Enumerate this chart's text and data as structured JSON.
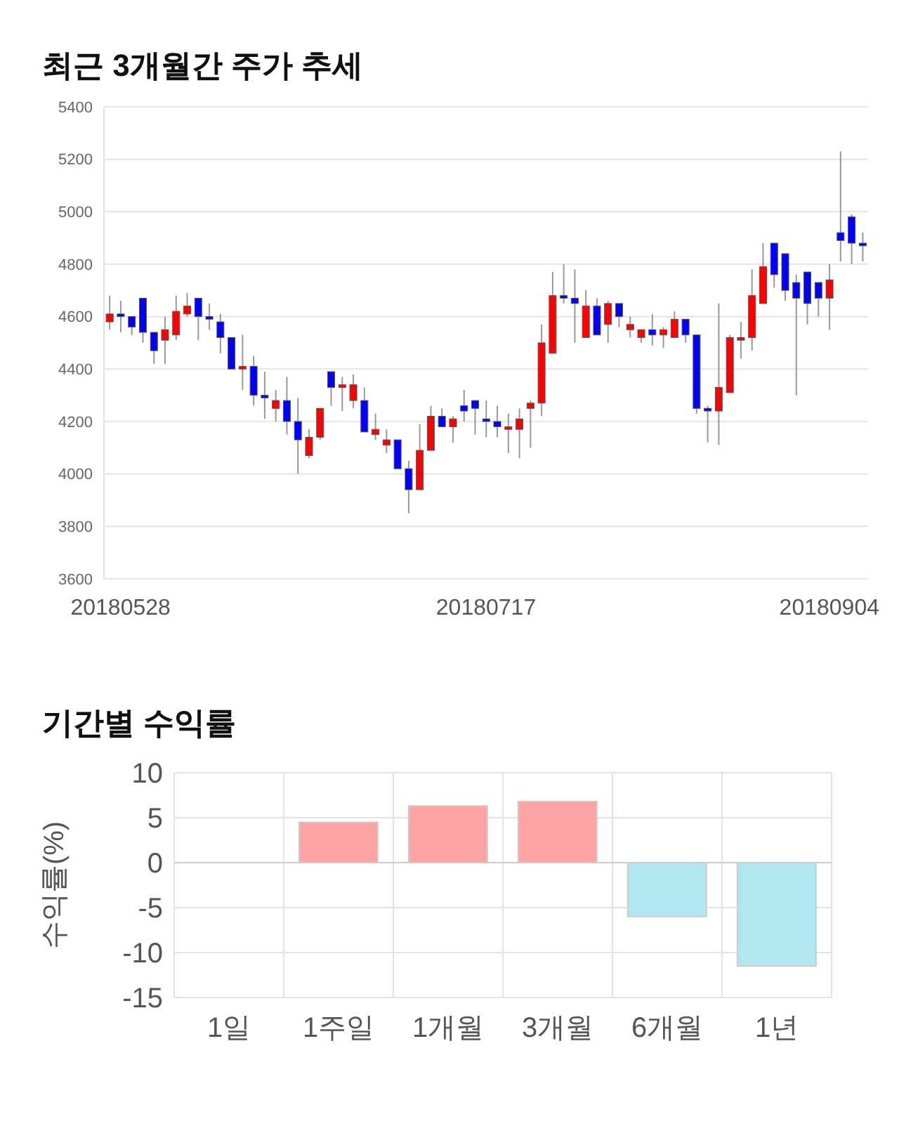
{
  "chart_data": [
    {
      "type": "candlestick",
      "title": "최근 3개월간 주가 추세",
      "categories": [
        null,
        "20180528",
        null,
        null,
        null,
        null,
        null,
        null,
        null,
        null,
        null,
        null,
        null,
        null,
        null,
        null,
        null,
        null,
        null,
        null,
        null,
        null,
        null,
        null,
        null,
        null,
        null,
        null,
        null,
        null,
        null,
        null,
        null,
        null,
        "20180717",
        null,
        null,
        null,
        null,
        null,
        null,
        null,
        null,
        null,
        null,
        null,
        null,
        null,
        null,
        null,
        null,
        null,
        null,
        null,
        null,
        null,
        null,
        null,
        null,
        null,
        null,
        null,
        null,
        null,
        null,
        "20180904",
        null,
        null,
        null
      ],
      "ohlc": [
        [
          4580,
          4680,
          4550,
          4610
        ],
        [
          4610,
          4660,
          4540,
          4600
        ],
        [
          4600,
          4600,
          4530,
          4560
        ],
        [
          4670,
          4670,
          4500,
          4540
        ],
        [
          4540,
          4540,
          4420,
          4470
        ],
        [
          4510,
          4600,
          4420,
          4550
        ],
        [
          4530,
          4680,
          4510,
          4620
        ],
        [
          4610,
          4690,
          4600,
          4640
        ],
        [
          4670,
          4670,
          4510,
          4600
        ],
        [
          4600,
          4650,
          4550,
          4590
        ],
        [
          4580,
          4610,
          4460,
          4520
        ],
        [
          4520,
          4520,
          4400,
          4400
        ],
        [
          4400,
          4530,
          4320,
          4410
        ],
        [
          4410,
          4450,
          4260,
          4300
        ],
        [
          4300,
          4390,
          4210,
          4290
        ],
        [
          4250,
          4320,
          4200,
          4280
        ],
        [
          4280,
          4370,
          4150,
          4200
        ],
        [
          4200,
          4290,
          4000,
          4130
        ],
        [
          4070,
          4170,
          4060,
          4140
        ],
        [
          4140,
          4250,
          4130,
          4250
        ],
        [
          4390,
          4390,
          4260,
          4330
        ],
        [
          4330,
          4370,
          4240,
          4340
        ],
        [
          4280,
          4380,
          4250,
          4340
        ],
        [
          4280,
          4330,
          4160,
          4160
        ],
        [
          4150,
          4230,
          4130,
          4170
        ],
        [
          4110,
          4170,
          4080,
          4130
        ],
        [
          4130,
          4130,
          4020,
          4020
        ],
        [
          4020,
          4050,
          3850,
          3940
        ],
        [
          3940,
          4190,
          3940,
          4090
        ],
        [
          4090,
          4260,
          4090,
          4220
        ],
        [
          4220,
          4250,
          4180,
          4180
        ],
        [
          4180,
          4220,
          4120,
          4210
        ],
        [
          4260,
          4320,
          4200,
          4240
        ],
        [
          4280,
          4280,
          4150,
          4250
        ],
        [
          4210,
          4280,
          4140,
          4200
        ],
        [
          4200,
          4260,
          4140,
          4180
        ],
        [
          4170,
          4230,
          4080,
          4180
        ],
        [
          4170,
          4250,
          4060,
          4210
        ],
        [
          4250,
          4280,
          4100,
          4270
        ],
        [
          4270,
          4570,
          4220,
          4500
        ],
        [
          4460,
          4770,
          4460,
          4680
        ],
        [
          4680,
          4800,
          4650,
          4670
        ],
        [
          4670,
          4780,
          4500,
          4650
        ],
        [
          4520,
          4700,
          4520,
          4640
        ],
        [
          4640,
          4670,
          4530,
          4530
        ],
        [
          4570,
          4660,
          4500,
          4650
        ],
        [
          4650,
          4650,
          4560,
          4600
        ],
        [
          4550,
          4600,
          4520,
          4570
        ],
        [
          4520,
          4550,
          4500,
          4550
        ],
        [
          4550,
          4610,
          4490,
          4530
        ],
        [
          4530,
          4560,
          4480,
          4550
        ],
        [
          4520,
          4620,
          4520,
          4590
        ],
        [
          4590,
          4590,
          4500,
          4530
        ],
        [
          4530,
          4530,
          4230,
          4250
        ],
        [
          4250,
          4260,
          4120,
          4240
        ],
        [
          4240,
          4650,
          4110,
          4330
        ],
        [
          4310,
          4530,
          4310,
          4520
        ],
        [
          4510,
          4580,
          4440,
          4520
        ],
        [
          4520,
          4780,
          4470,
          4680
        ],
        [
          4650,
          4880,
          4650,
          4790
        ],
        [
          4880,
          4880,
          4710,
          4760
        ],
        [
          4840,
          4840,
          4660,
          4700
        ],
        [
          4730,
          4760,
          4300,
          4670
        ],
        [
          4770,
          4770,
          4570,
          4650
        ],
        [
          4730,
          4730,
          4600,
          4670
        ],
        [
          4670,
          4800,
          4550,
          4740
        ],
        [
          4920,
          5230,
          4810,
          4890
        ],
        [
          4980,
          4990,
          4800,
          4880
        ],
        [
          4880,
          4920,
          4810,
          4870
        ]
      ],
      "colors": [
        "#ff0000",
        "#0000ff",
        "#0000ff",
        "#0000ff",
        "#0000ff",
        "#ff0000",
        "#ff0000",
        "#ff0000",
        "#0000ff",
        "#0000ff",
        "#0000ff",
        "#0000ff",
        "#ff0000",
        "#0000ff",
        "#0000ff",
        "#ff0000",
        "#0000ff",
        "#0000ff",
        "#ff0000",
        "#ff0000",
        "#0000ff",
        "#ff0000",
        "#ff0000",
        "#0000ff",
        "#ff0000",
        "#ff0000",
        "#0000ff",
        "#0000ff",
        "#ff0000",
        "#ff0000",
        "#0000ff",
        "#ff0000",
        "#0000ff",
        "#0000ff",
        "#0000ff",
        "#0000ff",
        "#ff0000",
        "#ff0000",
        "#ff0000",
        "#ff0000",
        "#ff0000",
        "#0000ff",
        "#0000ff",
        "#ff0000",
        "#0000ff",
        "#ff0000",
        "#0000ff",
        "#ff0000",
        "#ff0000",
        "#0000ff",
        "#ff0000",
        "#ff0000",
        "#0000ff",
        "#0000ff",
        "#0000ff",
        "#ff0000",
        "#ff0000",
        "#ff0000",
        "#ff0000",
        "#ff0000",
        "#0000ff",
        "#0000ff",
        "#0000ff",
        "#0000ff",
        "#0000ff",
        "#ff0000",
        "#0000ff",
        "#0000ff",
        "#0000ff"
      ],
      "ylim": [
        3600,
        5400
      ],
      "yticks": [
        3600,
        3800,
        4000,
        4200,
        4400,
        4600,
        4800,
        5000,
        5200,
        5400
      ],
      "grid": "y"
    },
    {
      "type": "bar",
      "title": "기간별 수익률",
      "ylabel": "수익률(%)",
      "categories": [
        "1일",
        "1주일",
        "1개월",
        "3개월",
        "6개월",
        "1년"
      ],
      "values": [
        0,
        4.5,
        6.3,
        6.8,
        -6,
        -11.5
      ],
      "colors": [
        "#ffa4a4",
        "#ffa4a4",
        "#ffa4a4",
        "#ffa4a4",
        "#b0e8f2",
        "#b0e8f2"
      ],
      "ylim": [
        -15,
        10
      ],
      "yticks": [
        -15,
        -10,
        -5,
        0,
        5,
        10
      ],
      "grid": true
    }
  ]
}
